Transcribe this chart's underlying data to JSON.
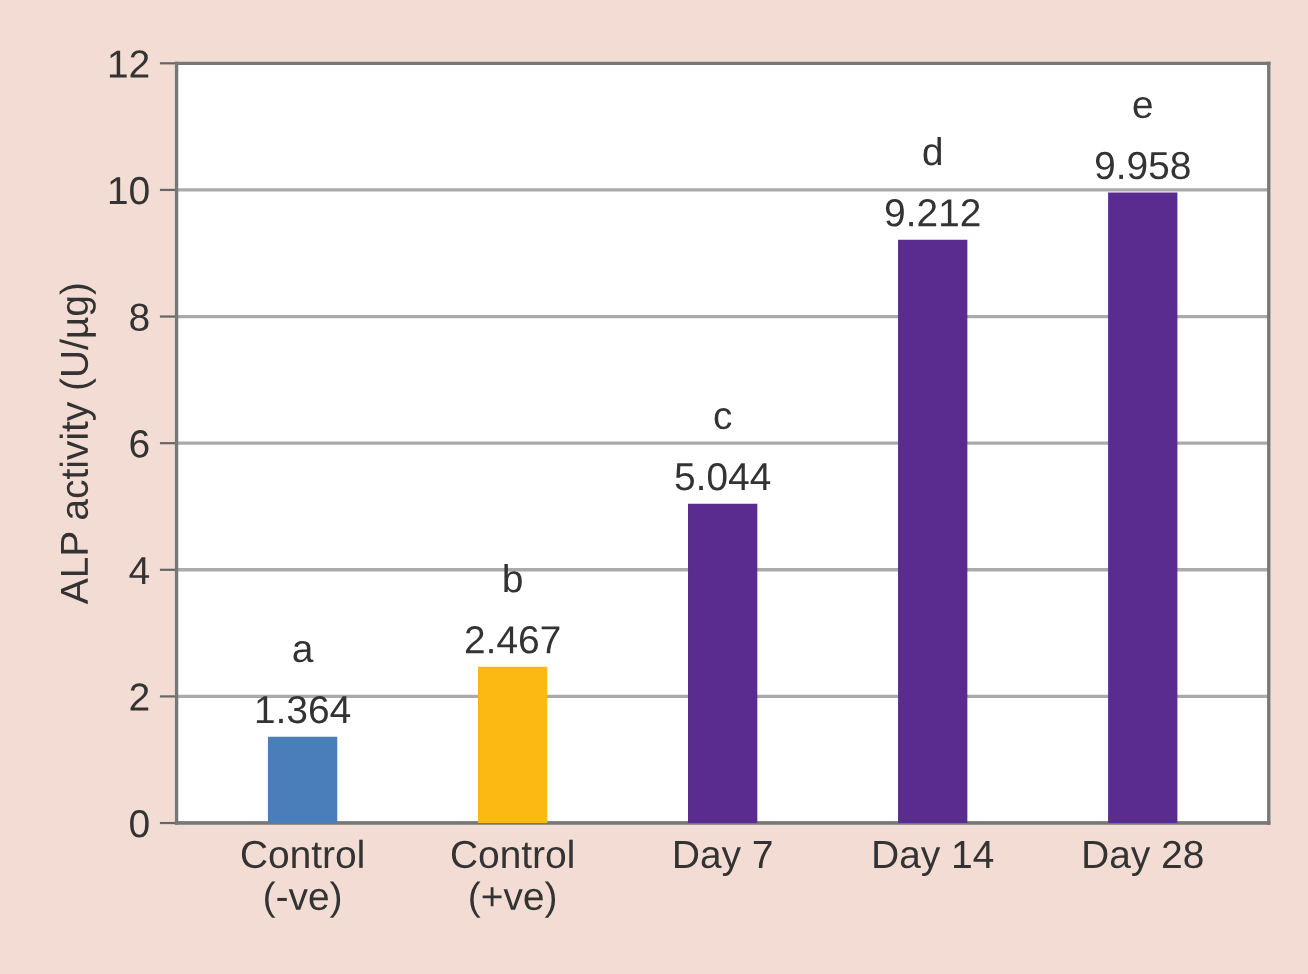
{
  "chart_data": {
    "type": "bar",
    "ylabel": "ALP activity (U/µg)",
    "categories": [
      "Control\n(-ve)",
      "Control\n(+ve)",
      "Day 7",
      "Day 14",
      "Day 28"
    ],
    "values": [
      1.364,
      2.467,
      5.044,
      9.212,
      9.958
    ],
    "colors": [
      "#4a7ebb",
      "#fdb913",
      "#5b2c8f",
      "#5b2c8f",
      "#5b2c8f"
    ],
    "data_labels": true,
    "annotations": [
      {
        "text": "a",
        "x": "Control\n(-ve)",
        "y": 1.364
      },
      {
        "text": "b",
        "x": "Control\n(+ve)",
        "y": 2.467
      },
      {
        "text": "c",
        "x": "Day 7",
        "y": 5.044
      },
      {
        "text": "d",
        "x": "Day 14",
        "y": 9.212
      },
      {
        "text": "e",
        "x": "Day 28",
        "y": 9.958
      }
    ],
    "ylim": [
      0,
      12
    ],
    "yticks": [
      0,
      2,
      4,
      6,
      8,
      10,
      12
    ],
    "grid": "y"
  }
}
